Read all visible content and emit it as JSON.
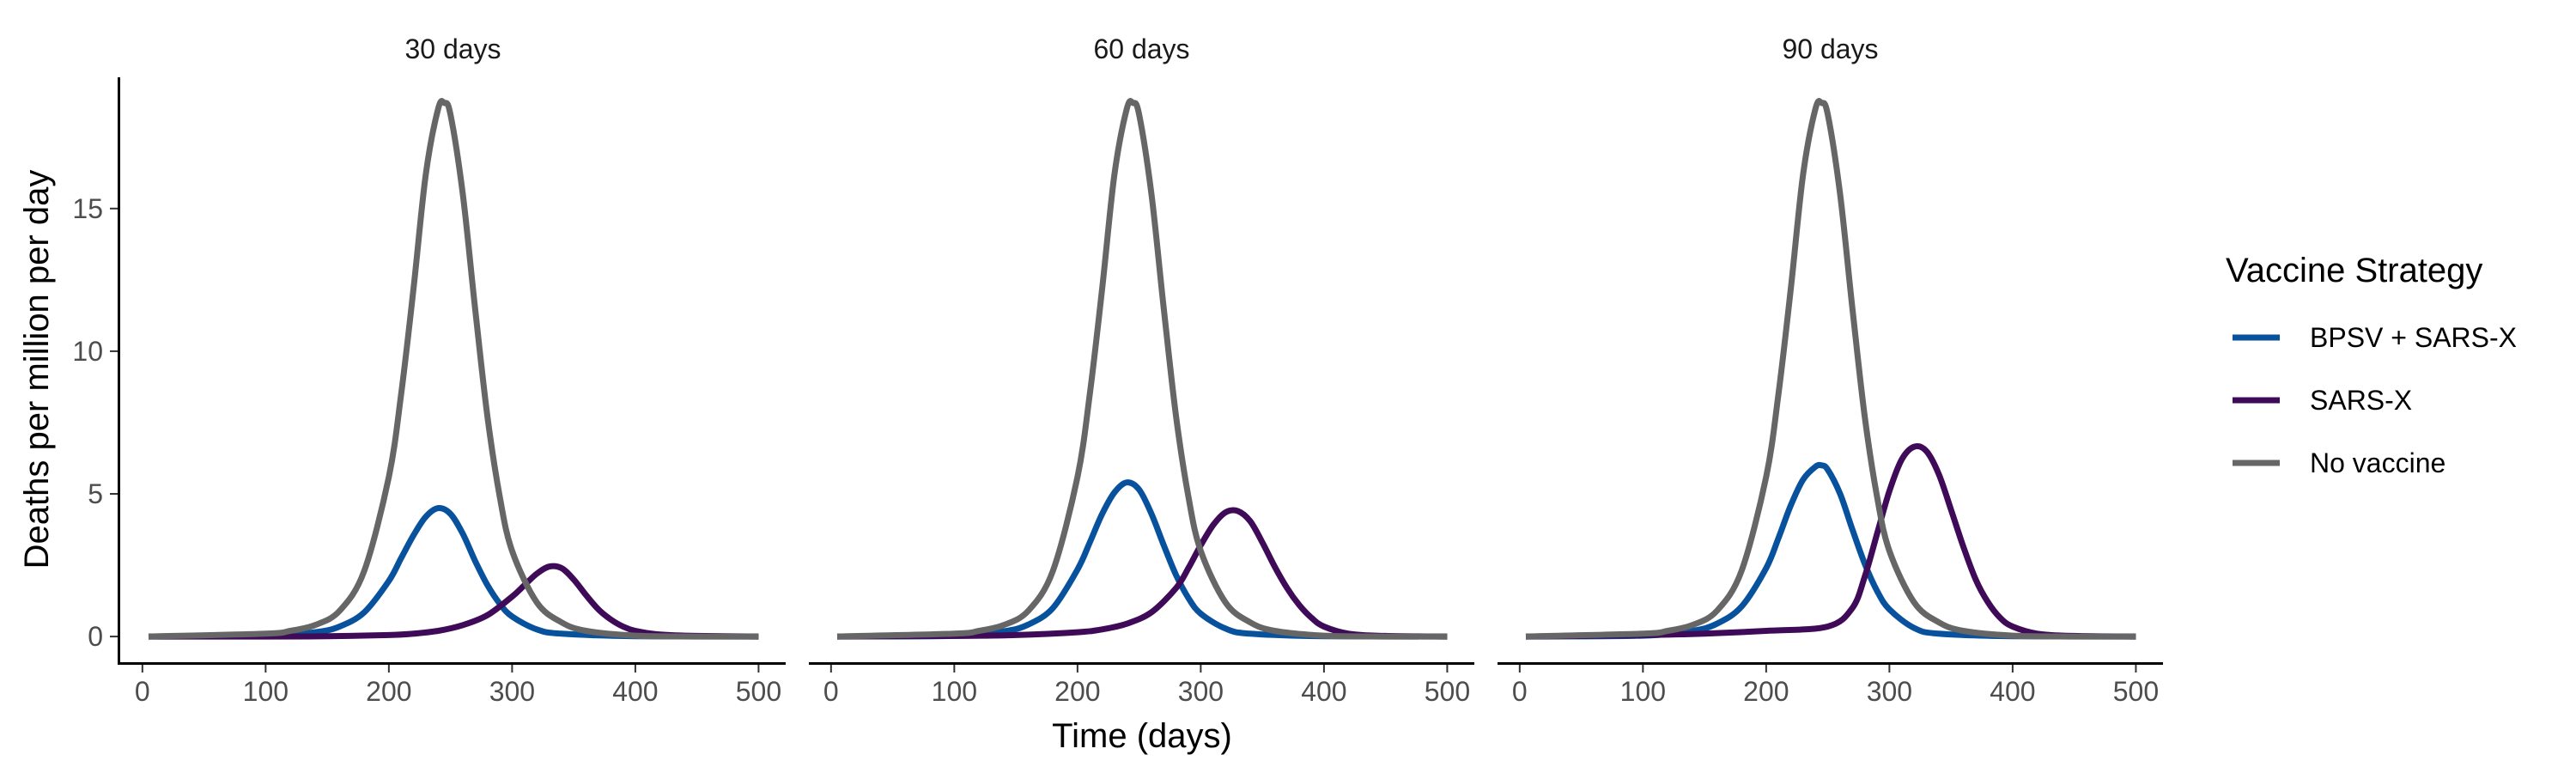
{
  "chart_data": {
    "type": "line",
    "xlabel": "Time (days)",
    "ylabel": "Deaths per million per day",
    "xlim": [
      -18,
      522
    ],
    "ylim": [
      -0.9,
      19.6
    ],
    "x_ticks": [
      0,
      100,
      200,
      300,
      400,
      500
    ],
    "y_ticks": [
      0,
      5,
      10,
      15
    ],
    "grid": false,
    "legend": {
      "title": "Vaccine Strategy",
      "position": "right",
      "entries": [
        {
          "label": "BPSV + SARS-X",
          "color": "#08519c"
        },
        {
          "label": "SARS-X",
          "color": "#3f0a57"
        },
        {
          "label": "No vaccine",
          "color": "#666666"
        }
      ]
    },
    "facets": [
      {
        "title": "30 days",
        "series": [
          {
            "name": "No vaccine",
            "color": "#666666",
            "x": [
              5,
              100,
              120,
              140,
              160,
              180,
              200,
              210,
              220,
              230,
              240,
              245,
              250,
              260,
              270,
              280,
              290,
              300,
              320,
              340,
              360,
              400,
              450,
              500
            ],
            "y": [
              0,
              0.1,
              0.2,
              0.4,
              0.9,
              2.3,
              5.6,
              8.5,
              12.2,
              16.2,
              18.5,
              18.7,
              18.3,
              15.5,
              11.5,
              7.7,
              4.9,
              3.0,
              1.2,
              0.5,
              0.2,
              0.03,
              0,
              0
            ]
          },
          {
            "name": "BPSV + SARS-X",
            "color": "#08519c",
            "x": [
              5,
              100,
              140,
              160,
              180,
              200,
              210,
              220,
              230,
              240,
              250,
              260,
              270,
              280,
              290,
              300,
              320,
              340,
              400,
              500
            ],
            "y": [
              0,
              0.02,
              0.15,
              0.35,
              0.85,
              1.95,
              2.75,
              3.55,
              4.2,
              4.5,
              4.3,
              3.6,
              2.65,
              1.8,
              1.15,
              0.7,
              0.25,
              0.1,
              0.01,
              0
            ]
          },
          {
            "name": "SARS-X",
            "color": "#3f0a57",
            "x": [
              5,
              100,
              150,
              200,
              220,
              240,
              260,
              280,
              300,
              310,
              320,
              330,
              340,
              350,
              360,
              370,
              380,
              390,
              400,
              420,
              450,
              500
            ],
            "y": [
              0,
              0,
              0.01,
              0.05,
              0.1,
              0.2,
              0.4,
              0.75,
              1.4,
              1.8,
              2.2,
              2.45,
              2.4,
              2.0,
              1.45,
              0.95,
              0.6,
              0.35,
              0.2,
              0.07,
              0.02,
              0
            ]
          }
        ]
      },
      {
        "title": "60 days",
        "series": [
          {
            "name": "No vaccine",
            "color": "#666666",
            "x": [
              5,
              100,
              120,
              140,
              160,
              180,
              200,
              210,
              220,
              230,
              240,
              245,
              250,
              260,
              270,
              280,
              290,
              300,
              320,
              340,
              360,
              400,
              450,
              500
            ],
            "y": [
              0,
              0.1,
              0.2,
              0.4,
              0.9,
              2.3,
              5.6,
              8.5,
              12.2,
              16.2,
              18.5,
              18.7,
              18.3,
              15.5,
              11.5,
              7.7,
              4.9,
              3.0,
              1.2,
              0.5,
              0.2,
              0.03,
              0,
              0
            ]
          },
          {
            "name": "BPSV + SARS-X",
            "color": "#08519c",
            "x": [
              5,
              100,
              140,
              160,
              180,
              200,
              210,
              220,
              230,
              240,
              250,
              260,
              270,
              280,
              290,
              300,
              320,
              340,
              400,
              500
            ],
            "y": [
              0,
              0.02,
              0.18,
              0.42,
              1.0,
              2.35,
              3.3,
              4.3,
              5.05,
              5.4,
              5.15,
              4.3,
              3.2,
              2.15,
              1.35,
              0.8,
              0.28,
              0.1,
              0.01,
              0
            ]
          },
          {
            "name": "SARS-X",
            "color": "#3f0a57",
            "x": [
              5,
              100,
              150,
              200,
              220,
              240,
              260,
              280,
              290,
              300,
              310,
              320,
              330,
              340,
              350,
              360,
              370,
              380,
              390,
              400,
              420,
              450,
              500
            ],
            "y": [
              0,
              0.02,
              0.05,
              0.15,
              0.25,
              0.45,
              0.85,
              1.7,
              2.4,
              3.2,
              3.9,
              4.35,
              4.4,
              4.05,
              3.3,
              2.45,
              1.7,
              1.1,
              0.65,
              0.35,
              0.1,
              0.02,
              0
            ]
          }
        ]
      },
      {
        "title": "90 days",
        "series": [
          {
            "name": "No vaccine",
            "color": "#666666",
            "x": [
              5,
              100,
              120,
              140,
              160,
              180,
              200,
              210,
              220,
              230,
              240,
              245,
              250,
              260,
              270,
              280,
              290,
              300,
              320,
              340,
              360,
              400,
              450,
              500
            ],
            "y": [
              0,
              0.1,
              0.2,
              0.4,
              0.9,
              2.3,
              5.6,
              8.5,
              12.2,
              16.2,
              18.5,
              18.7,
              18.3,
              15.5,
              11.5,
              7.7,
              4.9,
              3.0,
              1.2,
              0.5,
              0.2,
              0.03,
              0,
              0
            ]
          },
          {
            "name": "BPSV + SARS-X",
            "color": "#08519c",
            "x": [
              5,
              100,
              140,
              160,
              180,
              200,
              210,
              220,
              230,
              240,
              245,
              250,
              260,
              270,
              280,
              290,
              300,
              320,
              340,
              400,
              500
            ],
            "y": [
              0,
              0.03,
              0.2,
              0.45,
              1.05,
              2.4,
              3.45,
              4.6,
              5.5,
              5.95,
              6.0,
              5.85,
              5.0,
              3.75,
              2.55,
              1.6,
              0.95,
              0.3,
              0.1,
              0.01,
              0
            ]
          },
          {
            "name": "SARS-X",
            "color": "#3f0a57",
            "x": [
              5,
              100,
              150,
              200,
              250,
              270,
              280,
              290,
              300,
              310,
              320,
              330,
              340,
              350,
              360,
              370,
              380,
              390,
              400,
              420,
              450,
              500
            ],
            "y": [
              0,
              0.05,
              0.1,
              0.2,
              0.35,
              1.0,
              2.1,
              3.6,
              5.1,
              6.2,
              6.65,
              6.5,
              5.7,
              4.45,
              3.15,
              2.0,
              1.2,
              0.65,
              0.35,
              0.1,
              0.02,
              0
            ]
          }
        ]
      }
    ]
  }
}
